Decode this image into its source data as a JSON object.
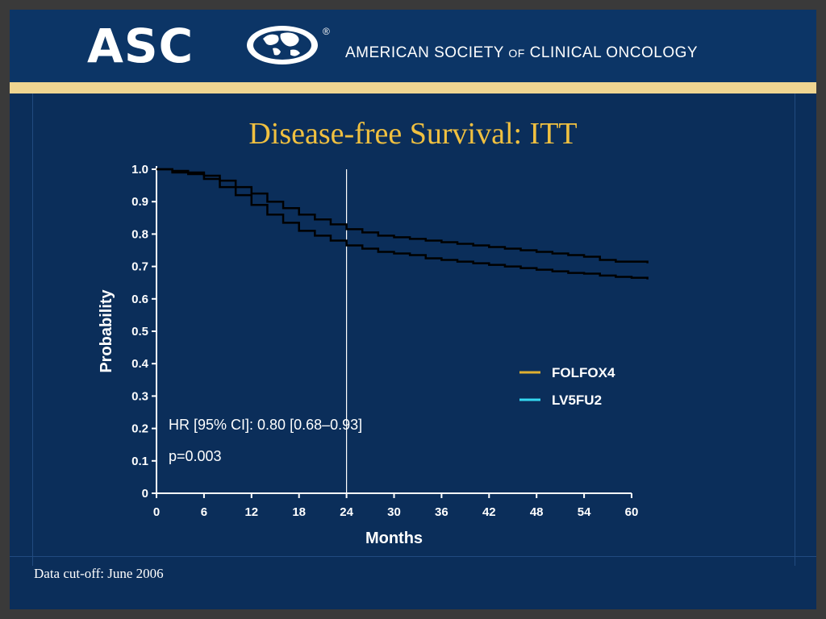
{
  "header": {
    "logo_text": "ASC",
    "society_part1": "AMERICAN SOCIETY",
    "society_of": "OF",
    "society_part2": "CLINICAL ONCOLOGY",
    "registered_mark": "®"
  },
  "footnote": "Data cut-off: June 2006",
  "colors": {
    "background": "#0b2e5a",
    "header": "#0c3566",
    "gold_band": "#efd591",
    "title": "#f0c040",
    "folfox4": "#e0b030",
    "lv5fu2": "#34d8f0"
  },
  "chart_data": {
    "type": "line",
    "title": "Disease-free Survival: ITT",
    "xlabel": "Months",
    "ylabel": "Probability",
    "xlim": [
      0,
      60
    ],
    "ylim": [
      0,
      1.0
    ],
    "x_ticks": [
      "0",
      "6",
      "12",
      "18",
      "24",
      "30",
      "36",
      "42",
      "48",
      "54",
      "60"
    ],
    "y_ticks": [
      "0",
      "0.1",
      "0.2",
      "0.3",
      "0.4",
      "0.5",
      "0.6",
      "0.7",
      "0.8",
      "0.9",
      "1.0"
    ],
    "reference_line_x": 24,
    "legend_position": "right",
    "series": [
      {
        "name": "FOLFOX4",
        "color": "#e0b030",
        "x": [
          0,
          2,
          4,
          6,
          8,
          10,
          12,
          14,
          16,
          18,
          20,
          22,
          24,
          26,
          28,
          30,
          32,
          34,
          36,
          38,
          40,
          42,
          44,
          46,
          48,
          50,
          52,
          54,
          56,
          58,
          60,
          62
        ],
        "y": [
          1.0,
          0.995,
          0.99,
          0.98,
          0.965,
          0.945,
          0.925,
          0.9,
          0.88,
          0.86,
          0.845,
          0.83,
          0.815,
          0.805,
          0.795,
          0.79,
          0.785,
          0.78,
          0.775,
          0.77,
          0.765,
          0.76,
          0.755,
          0.75,
          0.745,
          0.74,
          0.735,
          0.73,
          0.72,
          0.715,
          0.715,
          0.71
        ]
      },
      {
        "name": "LV5FU2",
        "color": "#34d8f0",
        "x": [
          0,
          2,
          4,
          6,
          8,
          10,
          12,
          14,
          16,
          18,
          20,
          22,
          24,
          26,
          28,
          30,
          32,
          34,
          36,
          38,
          40,
          42,
          44,
          46,
          48,
          50,
          52,
          54,
          56,
          58,
          60,
          62
        ],
        "y": [
          1.0,
          0.99,
          0.985,
          0.97,
          0.945,
          0.92,
          0.89,
          0.86,
          0.835,
          0.81,
          0.795,
          0.78,
          0.765,
          0.755,
          0.745,
          0.74,
          0.735,
          0.725,
          0.72,
          0.715,
          0.71,
          0.705,
          0.7,
          0.695,
          0.69,
          0.685,
          0.68,
          0.678,
          0.672,
          0.668,
          0.665,
          0.66
        ]
      }
    ],
    "annotations": {
      "hr": "HR [95% CI]:  0.80 [0.68–0.93]",
      "p": "p=0.003"
    }
  }
}
